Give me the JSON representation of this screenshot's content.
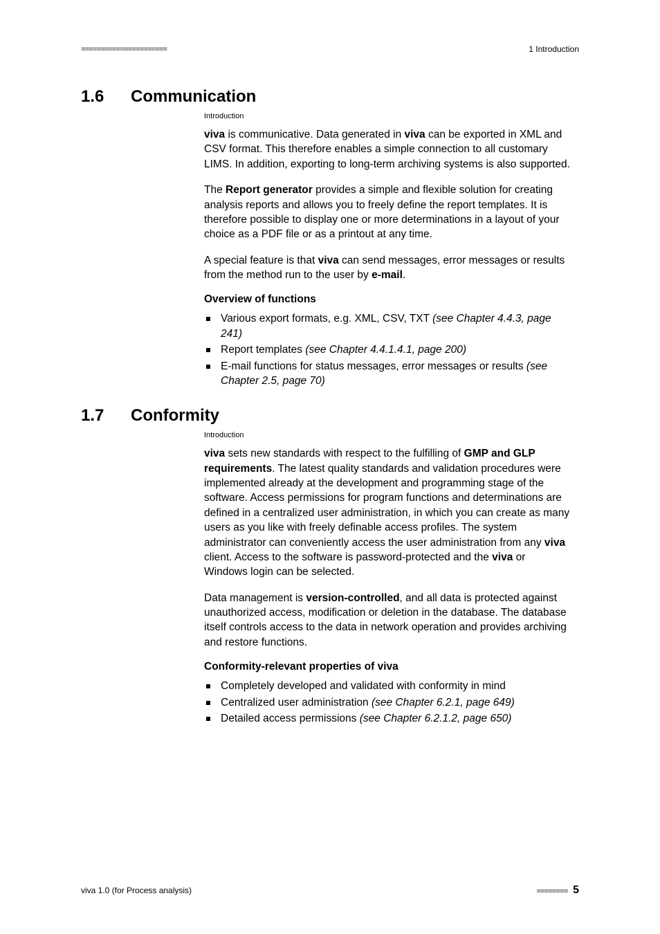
{
  "header": {
    "dashes": "■■■■■■■■■■■■■■■■■■■■■■",
    "chapter": "1 Introduction"
  },
  "sections": [
    {
      "number": "1.6",
      "title": "Communication",
      "intro": "Introduction",
      "paragraphs": [
        {
          "runs": [
            {
              "t": "viva",
              "b": true
            },
            {
              "t": " is communicative. Data generated in "
            },
            {
              "t": "viva",
              "b": true
            },
            {
              "t": " can be exported in XML and CSV format. This therefore enables a simple connection to all customary LIMS. In addition, exporting to long-term archiving systems is also supported."
            }
          ]
        },
        {
          "runs": [
            {
              "t": "The "
            },
            {
              "t": "Report generator",
              "b": true
            },
            {
              "t": " provides a simple and flexible solution for creating analysis reports and allows you to freely define the report templates. It is therefore possible to display one or more determinations in a layout of your choice as a PDF file or as a printout at any time."
            }
          ]
        },
        {
          "runs": [
            {
              "t": "A special feature is that "
            },
            {
              "t": "viva",
              "b": true
            },
            {
              "t": " can send messages, error messages or results from the method run to the user by "
            },
            {
              "t": "e-mail",
              "b": true
            },
            {
              "t": "."
            }
          ]
        }
      ],
      "listHeading": "Overview of functions",
      "list": [
        {
          "runs": [
            {
              "t": "Various export formats, e.g. XML, CSV, TXT "
            },
            {
              "t": "(see Chapter 4.4.3, page 241)",
              "i": true
            }
          ]
        },
        {
          "runs": [
            {
              "t": "Report templates "
            },
            {
              "t": "(see Chapter 4.4.1.4.1, page 200)",
              "i": true
            }
          ]
        },
        {
          "runs": [
            {
              "t": "E-mail functions for status messages, error messages or results "
            },
            {
              "t": "(see Chapter 2.5, page 70)",
              "i": true
            }
          ]
        }
      ]
    },
    {
      "number": "1.7",
      "title": "Conformity",
      "intro": "Introduction",
      "paragraphs": [
        {
          "runs": [
            {
              "t": "viva",
              "b": true
            },
            {
              "t": " sets new standards with respect to the fulfilling of "
            },
            {
              "t": "GMP and GLP requirements",
              "b": true
            },
            {
              "t": ". The latest quality standards and validation procedures were implemented already at the development and programming stage of the software. Access permissions for program functions and determinations are defined in a centralized user administration, in which you can create as many users as you like with freely definable access profiles. The system administrator can conveniently access the user administration from any "
            },
            {
              "t": "viva",
              "b": true
            },
            {
              "t": " client. Access to the software is password-protected and the "
            },
            {
              "t": "viva",
              "b": true
            },
            {
              "t": " or Windows login can be selected."
            }
          ]
        },
        {
          "runs": [
            {
              "t": "Data management is "
            },
            {
              "t": "version-controlled",
              "b": true
            },
            {
              "t": ", and all data is protected against unauthorized access, modification or deletion in the database. The database itself controls access to the data in network operation and provides archiving and restore functions."
            }
          ]
        }
      ],
      "listHeading": "Conformity-relevant properties of viva",
      "list": [
        {
          "runs": [
            {
              "t": "Completely developed and validated with conformity in mind"
            }
          ]
        },
        {
          "runs": [
            {
              "t": "Centralized user administration "
            },
            {
              "t": "(see Chapter 6.2.1, page 649)",
              "i": true
            }
          ]
        },
        {
          "runs": [
            {
              "t": "Detailed access permissions "
            },
            {
              "t": "(see Chapter 6.2.1.2, page 650)",
              "i": true
            }
          ]
        }
      ]
    }
  ],
  "footer": {
    "left": "viva 1.0 (for Process analysis)",
    "dashes": "■■■■■■■■",
    "page": "5"
  }
}
